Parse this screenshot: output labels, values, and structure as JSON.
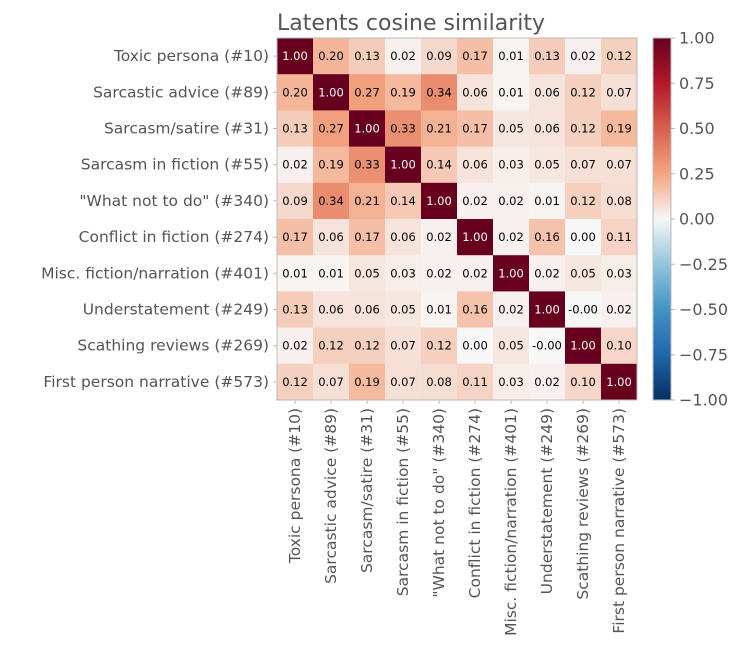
{
  "chart_data": {
    "type": "heatmap",
    "title": "Latents cosine similarity",
    "row_labels": [
      "Toxic persona (#10)",
      "Sarcastic advice (#89)",
      "Sarcasm/satire (#31)",
      "Sarcasm in fiction (#55)",
      "\"What not to do\" (#340)",
      "Conflict in fiction (#274)",
      "Misc. fiction/narration (#401)",
      "Understatement (#249)",
      "Scathing reviews (#269)",
      "First person narrative (#573)"
    ],
    "col_labels": [
      "Toxic persona (#10)",
      "Sarcastic advice (#89)",
      "Sarcasm/satire (#31)",
      "Sarcasm in fiction (#55)",
      "\"What not to do\" (#340)",
      "Conflict in fiction (#274)",
      "Misc. fiction/narration (#401)",
      "Understatement (#249)",
      "Scathing reviews (#269)",
      "First person narrative (#573)"
    ],
    "values": [
      [
        1.0,
        0.2,
        0.13,
        0.02,
        0.09,
        0.17,
        0.01,
        0.13,
        0.02,
        0.12
      ],
      [
        0.2,
        1.0,
        0.27,
        0.19,
        0.34,
        0.06,
        0.01,
        0.06,
        0.12,
        0.07
      ],
      [
        0.13,
        0.27,
        1.0,
        0.33,
        0.21,
        0.17,
        0.05,
        0.06,
        0.12,
        0.19
      ],
      [
        0.02,
        0.19,
        0.33,
        1.0,
        0.14,
        0.06,
        0.03,
        0.05,
        0.07,
        0.07
      ],
      [
        0.09,
        0.34,
        0.21,
        0.14,
        1.0,
        0.02,
        0.02,
        0.01,
        0.12,
        0.08
      ],
      [
        0.17,
        0.06,
        0.17,
        0.06,
        0.02,
        1.0,
        0.02,
        0.16,
        0.0,
        0.11
      ],
      [
        0.01,
        0.01,
        0.05,
        0.03,
        0.02,
        0.02,
        1.0,
        0.02,
        0.05,
        0.03
      ],
      [
        0.13,
        0.06,
        0.06,
        0.05,
        0.01,
        0.16,
        0.02,
        1.0,
        -0.0,
        0.02
      ],
      [
        0.02,
        0.12,
        0.12,
        0.07,
        0.12,
        0.0,
        0.05,
        -0.0,
        1.0,
        0.1
      ],
      [
        0.12,
        0.07,
        0.19,
        0.07,
        0.08,
        0.11,
        0.03,
        0.02,
        0.1,
        1.0
      ]
    ],
    "cell_labels": [
      [
        "1.00",
        "0.20",
        "0.13",
        "0.02",
        "0.09",
        "0.17",
        "0.01",
        "0.13",
        "0.02",
        "0.12"
      ],
      [
        "0.20",
        "1.00",
        "0.27",
        "0.19",
        "0.34",
        "0.06",
        "0.01",
        "0.06",
        "0.12",
        "0.07"
      ],
      [
        "0.13",
        "0.27",
        "1.00",
        "0.33",
        "0.21",
        "0.17",
        "0.05",
        "0.06",
        "0.12",
        "0.19"
      ],
      [
        "0.02",
        "0.19",
        "0.33",
        "1.00",
        "0.14",
        "0.06",
        "0.03",
        "0.05",
        "0.07",
        "0.07"
      ],
      [
        "0.09",
        "0.34",
        "0.21",
        "0.14",
        "1.00",
        "0.02",
        "0.02",
        "0.01",
        "0.12",
        "0.08"
      ],
      [
        "0.17",
        "0.06",
        "0.17",
        "0.06",
        "0.02",
        "1.00",
        "0.02",
        "0.16",
        "0.00",
        "0.11"
      ],
      [
        "0.01",
        "0.01",
        "0.05",
        "0.03",
        "0.02",
        "0.02",
        "1.00",
        "0.02",
        "0.05",
        "0.03"
      ],
      [
        "0.13",
        "0.06",
        "0.06",
        "0.05",
        "0.01",
        "0.16",
        "0.02",
        "1.00",
        "-0.00",
        "0.02"
      ],
      [
        "0.02",
        "0.12",
        "0.12",
        "0.07",
        "0.12",
        "0.00",
        "0.05",
        "-0.00",
        "1.00",
        "0.10"
      ],
      [
        "0.12",
        "0.07",
        "0.19",
        "0.07",
        "0.08",
        "0.11",
        "0.03",
        "0.02",
        "0.10",
        "1.00"
      ]
    ],
    "colorbar": {
      "range": [
        -1.0,
        1.0
      ],
      "colormap": "RdBu_r",
      "ticks": [
        1.0,
        0.75,
        0.5,
        0.25,
        0.0,
        -0.25,
        -0.5,
        -0.75,
        -1.0
      ],
      "tick_labels": [
        "1.00",
        "0.75",
        "0.50",
        "0.25",
        "0.00",
        "−0.25",
        "−0.50",
        "−0.75",
        "−1.00"
      ]
    }
  }
}
